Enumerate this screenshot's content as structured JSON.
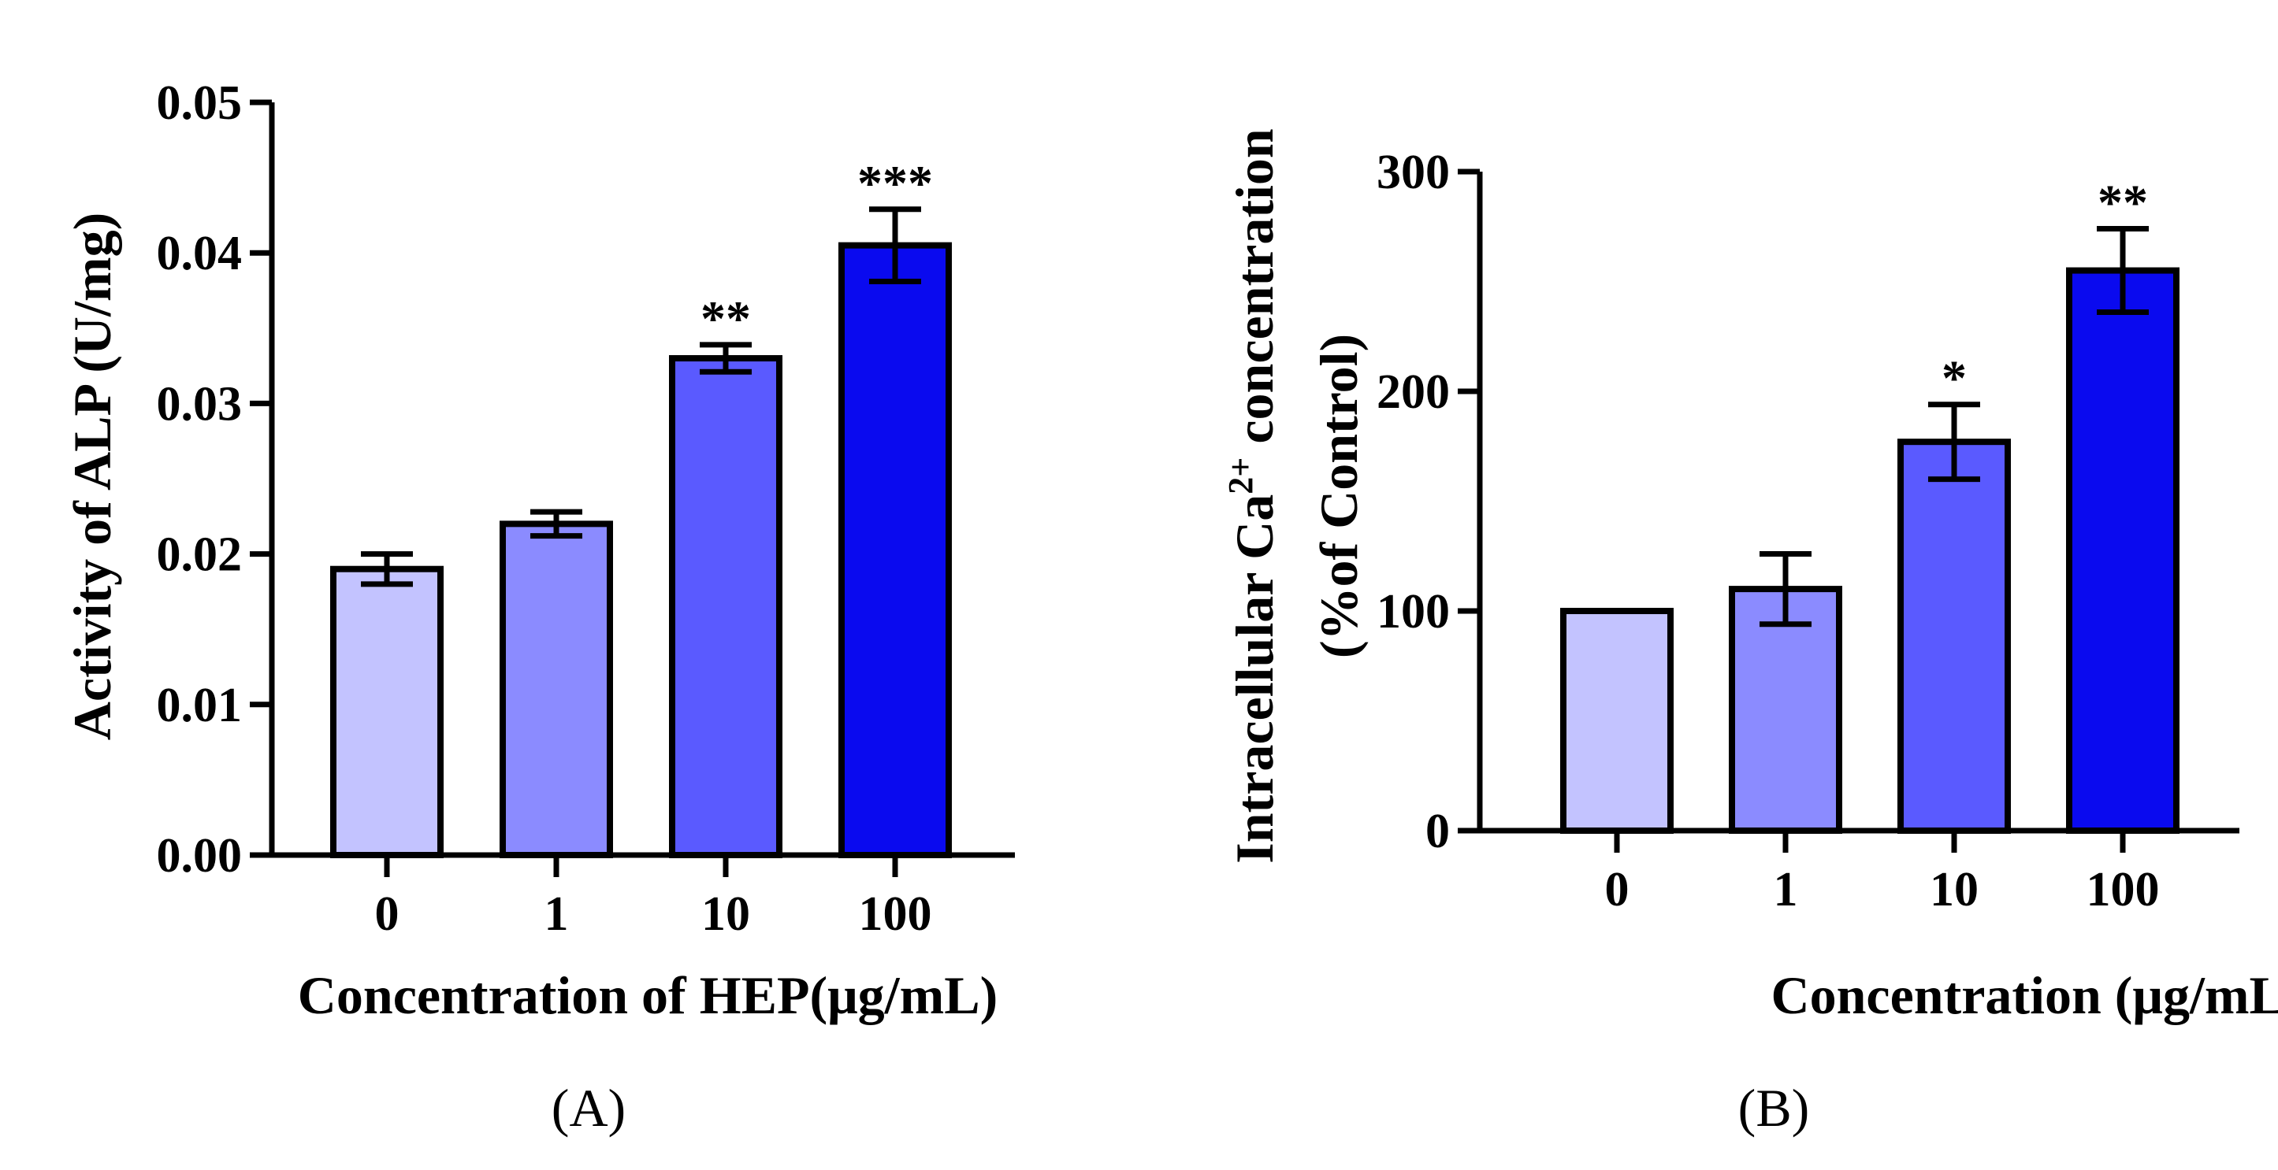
{
  "chart_data": [
    {
      "type": "bar",
      "panel_label": "(A)",
      "categories": [
        "0",
        "1",
        "10",
        "100"
      ],
      "values": [
        0.019,
        0.022,
        0.033,
        0.0405
      ],
      "errors": [
        0.001,
        0.0008,
        0.0009,
        0.0024
      ],
      "significance": [
        "",
        "",
        "**",
        "***"
      ],
      "colors": [
        "#c3c3ff",
        "#8b8bff",
        "#5a5aff",
        "#0a0aef"
      ],
      "xlabel": "Concentration of HEP(μg/mL)",
      "ylabel": "Activity of ALP (U/mg)",
      "ylim": [
        0,
        0.05
      ],
      "yticks": [
        "0.00",
        "0.01",
        "0.02",
        "0.03",
        "0.04",
        "0.05"
      ]
    },
    {
      "type": "bar",
      "panel_label": "(B)",
      "categories": [
        "0",
        "1",
        "10",
        "100"
      ],
      "values": [
        100,
        110,
        177,
        255
      ],
      "errors": [
        0,
        16,
        17,
        19
      ],
      "significance": [
        "",
        "",
        "*",
        "**"
      ],
      "colors": [
        "#c3c3ff",
        "#8b8bff",
        "#5a5aff",
        "#0a0aef"
      ],
      "xlabel": "Concentration (μg/mL)",
      "ylabel_line1": "Intracellular Ca",
      "ylabel_sup": "2+",
      "ylabel_line1_end": " concentration",
      "ylabel_line2": "(%of Control)",
      "ylim": [
        0,
        300
      ],
      "yticks": [
        "0",
        "100",
        "200",
        "300"
      ]
    }
  ]
}
